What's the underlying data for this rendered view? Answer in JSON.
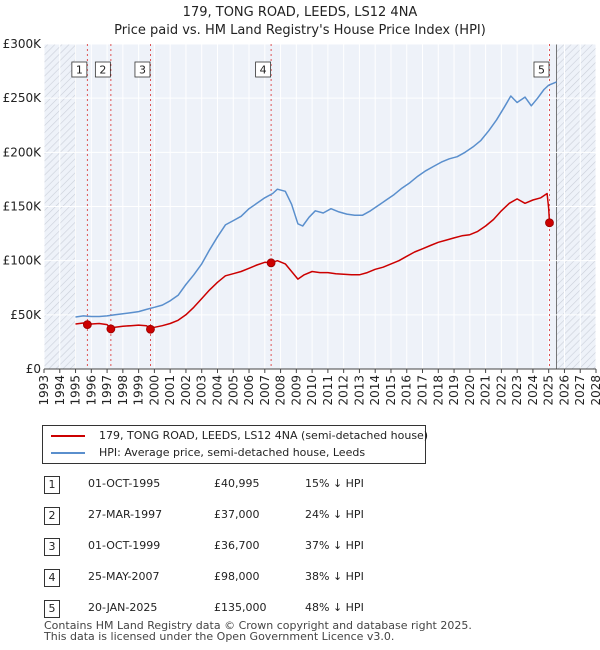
{
  "chart_data": {
    "type": "line",
    "title": "179, TONG ROAD, LEEDS, LS12 4NA",
    "subtitle": "Price paid vs. HM Land Registry's House Price Index (HPI)",
    "xlabel": "",
    "ylabel": "",
    "xlim": [
      1993,
      2028
    ],
    "ylim": [
      0,
      300000
    ],
    "x_ticks": [
      "1993",
      "1994",
      "1995",
      "1996",
      "1997",
      "1998",
      "1999",
      "2000",
      "2001",
      "2002",
      "2003",
      "2004",
      "2005",
      "2006",
      "2007",
      "2008",
      "2009",
      "2010",
      "2011",
      "2012",
      "2013",
      "2014",
      "2015",
      "2016",
      "2017",
      "2018",
      "2019",
      "2020",
      "2021",
      "2022",
      "2023",
      "2024",
      "2025",
      "2026",
      "2027",
      "2028"
    ],
    "y_ticks": [
      {
        "value": 0,
        "label": "£0"
      },
      {
        "value": 50000,
        "label": "£50K"
      },
      {
        "value": 100000,
        "label": "£100K"
      },
      {
        "value": 150000,
        "label": "£150K"
      },
      {
        "value": 200000,
        "label": "£200K"
      },
      {
        "value": 250000,
        "label": "£250K"
      },
      {
        "value": 300000,
        "label": "£300K"
      }
    ],
    "grid": true,
    "data_start": 1995.0,
    "data_end": 2025.5,
    "series": [
      {
        "name": "179, TONG ROAD, LEEDS, LS12 4NA (semi-detached house)",
        "color": "#cc0000",
        "points": [
          [
            1995.0,
            41500
          ],
          [
            1995.5,
            42500
          ],
          [
            1995.75,
            40995
          ],
          [
            1996.0,
            41500
          ],
          [
            1996.5,
            42000
          ],
          [
            1997.0,
            41000
          ],
          [
            1997.24,
            37000
          ],
          [
            1997.5,
            38500
          ],
          [
            1998.0,
            39500
          ],
          [
            1998.5,
            40000
          ],
          [
            1999.0,
            40500
          ],
          [
            1999.5,
            40000
          ],
          [
            1999.75,
            36700
          ],
          [
            2000.0,
            38500
          ],
          [
            2000.5,
            40000
          ],
          [
            2001.0,
            42000
          ],
          [
            2001.5,
            45000
          ],
          [
            2002.0,
            50000
          ],
          [
            2002.5,
            57000
          ],
          [
            2003.0,
            65000
          ],
          [
            2003.5,
            73000
          ],
          [
            2004.0,
            80000
          ],
          [
            2004.5,
            86000
          ],
          [
            2005.0,
            88000
          ],
          [
            2005.5,
            90000
          ],
          [
            2006.0,
            93000
          ],
          [
            2006.5,
            96000
          ],
          [
            2007.0,
            98500
          ],
          [
            2007.4,
            98000
          ],
          [
            2007.8,
            100000
          ],
          [
            2008.3,
            97000
          ],
          [
            2008.7,
            90000
          ],
          [
            2009.1,
            83000
          ],
          [
            2009.5,
            87000
          ],
          [
            2010.0,
            90000
          ],
          [
            2010.5,
            89000
          ],
          [
            2011.0,
            89000
          ],
          [
            2011.5,
            88000
          ],
          [
            2012.0,
            87500
          ],
          [
            2012.5,
            87000
          ],
          [
            2013.0,
            87000
          ],
          [
            2013.5,
            89000
          ],
          [
            2014.0,
            92000
          ],
          [
            2014.5,
            94000
          ],
          [
            2015.0,
            97000
          ],
          [
            2015.5,
            100000
          ],
          [
            2016.0,
            104000
          ],
          [
            2016.5,
            108000
          ],
          [
            2017.0,
            111000
          ],
          [
            2017.5,
            114000
          ],
          [
            2018.0,
            117000
          ],
          [
            2018.5,
            119000
          ],
          [
            2019.0,
            121000
          ],
          [
            2019.5,
            123000
          ],
          [
            2020.0,
            124000
          ],
          [
            2020.5,
            127000
          ],
          [
            2021.0,
            132000
          ],
          [
            2021.5,
            138000
          ],
          [
            2022.0,
            146000
          ],
          [
            2022.5,
            153000
          ],
          [
            2023.0,
            157000
          ],
          [
            2023.5,
            153000
          ],
          [
            2024.0,
            156000
          ],
          [
            2024.5,
            158000
          ],
          [
            2024.9,
            162000
          ],
          [
            2025.0,
            148000
          ],
          [
            2025.05,
            135000
          ],
          [
            2025.3,
            133000
          ]
        ]
      },
      {
        "name": "HPI: Average price, semi-detached house, Leeds",
        "color": "#5a8fcd",
        "points": [
          [
            1995.0,
            48000
          ],
          [
            1995.5,
            49000
          ],
          [
            1996.0,
            48500
          ],
          [
            1996.5,
            48500
          ],
          [
            1997.0,
            49000
          ],
          [
            1997.5,
            50000
          ],
          [
            1998.0,
            51000
          ],
          [
            1998.5,
            52000
          ],
          [
            1999.0,
            53000
          ],
          [
            1999.5,
            55000
          ],
          [
            2000.0,
            57000
          ],
          [
            2000.5,
            59000
          ],
          [
            2001.0,
            63000
          ],
          [
            2001.5,
            68000
          ],
          [
            2002.0,
            78000
          ],
          [
            2002.5,
            87000
          ],
          [
            2003.0,
            97000
          ],
          [
            2003.5,
            110000
          ],
          [
            2004.0,
            122000
          ],
          [
            2004.5,
            133000
          ],
          [
            2005.0,
            137000
          ],
          [
            2005.5,
            141000
          ],
          [
            2006.0,
            148000
          ],
          [
            2006.5,
            153000
          ],
          [
            2007.0,
            158000
          ],
          [
            2007.5,
            162000
          ],
          [
            2007.8,
            166000
          ],
          [
            2008.3,
            164000
          ],
          [
            2008.7,
            152000
          ],
          [
            2009.1,
            134000
          ],
          [
            2009.4,
            132000
          ],
          [
            2009.8,
            140000
          ],
          [
            2010.2,
            146000
          ],
          [
            2010.7,
            144000
          ],
          [
            2011.2,
            148000
          ],
          [
            2011.7,
            145000
          ],
          [
            2012.2,
            143000
          ],
          [
            2012.7,
            142000
          ],
          [
            2013.2,
            142000
          ],
          [
            2013.7,
            146000
          ],
          [
            2014.2,
            151000
          ],
          [
            2014.7,
            156000
          ],
          [
            2015.2,
            161000
          ],
          [
            2015.7,
            167000
          ],
          [
            2016.2,
            172000
          ],
          [
            2016.7,
            178000
          ],
          [
            2017.2,
            183000
          ],
          [
            2017.7,
            187000
          ],
          [
            2018.2,
            191000
          ],
          [
            2018.7,
            194000
          ],
          [
            2019.2,
            196000
          ],
          [
            2019.7,
            200000
          ],
          [
            2020.2,
            205000
          ],
          [
            2020.7,
            211000
          ],
          [
            2021.2,
            220000
          ],
          [
            2021.7,
            230000
          ],
          [
            2022.2,
            242000
          ],
          [
            2022.6,
            252000
          ],
          [
            2023.0,
            246000
          ],
          [
            2023.5,
            251000
          ],
          [
            2023.9,
            243000
          ],
          [
            2024.3,
            250000
          ],
          [
            2024.7,
            258000
          ],
          [
            2025.0,
            262000
          ],
          [
            2025.5,
            265000
          ]
        ]
      }
    ],
    "sales": [
      {
        "label": "1",
        "x": 1995.75,
        "value": 40995
      },
      {
        "label": "2",
        "x": 1997.24,
        "value": 37000
      },
      {
        "label": "3",
        "x": 1999.75,
        "value": 36700
      },
      {
        "label": "4",
        "x": 2007.4,
        "value": 98000
      },
      {
        "label": "5",
        "x": 2025.05,
        "value": 135000
      }
    ]
  },
  "legend": {
    "property_label": "179, TONG ROAD, LEEDS, LS12 4NA (semi-detached house)",
    "hpi_label": "HPI: Average price, semi-detached house, Leeds",
    "property_color": "#cc0000",
    "hpi_color": "#5a8fcd"
  },
  "sales_table": [
    {
      "num": "1",
      "date": "01-OCT-1995",
      "price": "£40,995",
      "hpi": "15% ↓ HPI"
    },
    {
      "num": "2",
      "date": "27-MAR-1997",
      "price": "£37,000",
      "hpi": "24% ↓ HPI"
    },
    {
      "num": "3",
      "date": "01-OCT-1999",
      "price": "£36,700",
      "hpi": "37% ↓ HPI"
    },
    {
      "num": "4",
      "date": "25-MAY-2007",
      "price": "£98,000",
      "hpi": "38% ↓ HPI"
    },
    {
      "num": "5",
      "date": "20-JAN-2025",
      "price": "£135,000",
      "hpi": "48% ↓ HPI"
    }
  ],
  "footer": {
    "line1": "Contains HM Land Registry data © Crown copyright and database right 2025.",
    "line2": "This data is licensed under the Open Government Licence v3.0."
  },
  "colors": {
    "background": "#ffffff",
    "plot_background": "#eef2f9",
    "grid": "#ffffff",
    "hatch": "#c9ced8",
    "marker_line": "#dd4444"
  }
}
